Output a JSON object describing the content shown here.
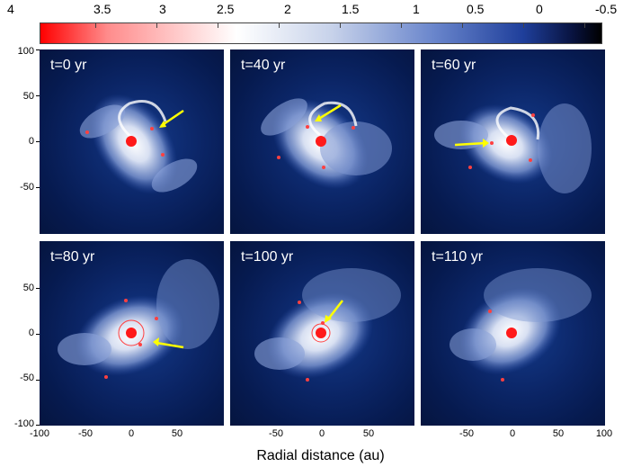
{
  "colorbar": {
    "ticks": [
      "4",
      "3.5",
      "3",
      "2.5",
      "2",
      "1.5",
      "1",
      "0.5",
      "0",
      "-0.5"
    ]
  },
  "panels": [
    {
      "label": "t=0 yr"
    },
    {
      "label": "t=40 yr"
    },
    {
      "label": "t=60 yr"
    },
    {
      "label": "t=80 yr"
    },
    {
      "label": "t=100 yr"
    },
    {
      "label": "t=110 yr"
    }
  ],
  "y_ticks_top": [
    "100",
    "50",
    "0",
    "-50"
  ],
  "y_ticks_bottom": [
    "50",
    "0",
    "-50",
    "-100"
  ],
  "x_ticks_panel1": [
    "-100",
    "-50",
    "0",
    "50"
  ],
  "x_ticks_panel2": [
    "-50",
    "0",
    "50"
  ],
  "x_ticks_panel3": [
    "-50",
    "0",
    "50",
    "100"
  ],
  "x_axis_label": "Radial distance (au)",
  "colors": {
    "arrow": "#ffff00",
    "star": "#ff1a1a",
    "disk_bg": "#061a4f"
  }
}
